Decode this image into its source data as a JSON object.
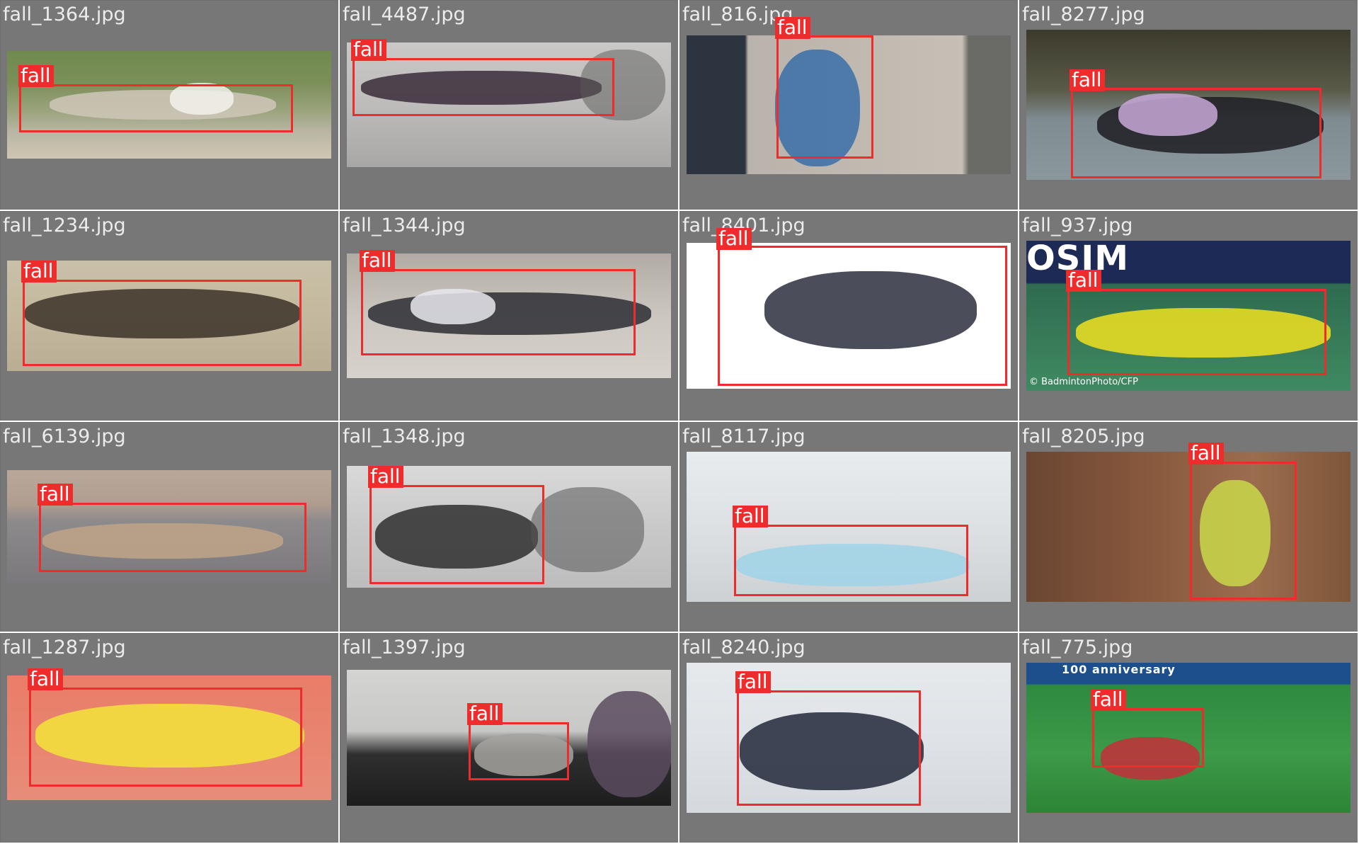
{
  "grid": {
    "label": "fall",
    "colors": {
      "cell_bg": "#777777",
      "box": "#f02b2b",
      "filename_text": "#ececec",
      "tag_text": "#ffffff"
    }
  },
  "tiles": [
    {
      "filename": "fall_1364.jpg",
      "label": "fall"
    },
    {
      "filename": "fall_4487.jpg",
      "label": "fall"
    },
    {
      "filename": "fall_816.jpg",
      "label": "fall"
    },
    {
      "filename": "fall_8277.jpg",
      "label": "fall"
    },
    {
      "filename": "fall_1234.jpg",
      "label": "fall"
    },
    {
      "filename": "fall_1344.jpg",
      "label": "fall"
    },
    {
      "filename": "fall_8401.jpg",
      "label": "fall"
    },
    {
      "filename": "fall_937.jpg",
      "label": "fall",
      "watermark": "© BadmintonPhoto/CFP",
      "sign_text": "OSIM"
    },
    {
      "filename": "fall_6139.jpg",
      "label": "fall"
    },
    {
      "filename": "fall_1348.jpg",
      "label": "fall"
    },
    {
      "filename": "fall_8117.jpg",
      "label": "fall"
    },
    {
      "filename": "fall_8205.jpg",
      "label": "fall"
    },
    {
      "filename": "fall_1287.jpg",
      "label": "fall"
    },
    {
      "filename": "fall_1397.jpg",
      "label": "fall"
    },
    {
      "filename": "fall_8240.jpg",
      "label": "fall"
    },
    {
      "filename": "fall_775.jpg",
      "label": "fall",
      "sign_text": "100 anniversary"
    }
  ]
}
